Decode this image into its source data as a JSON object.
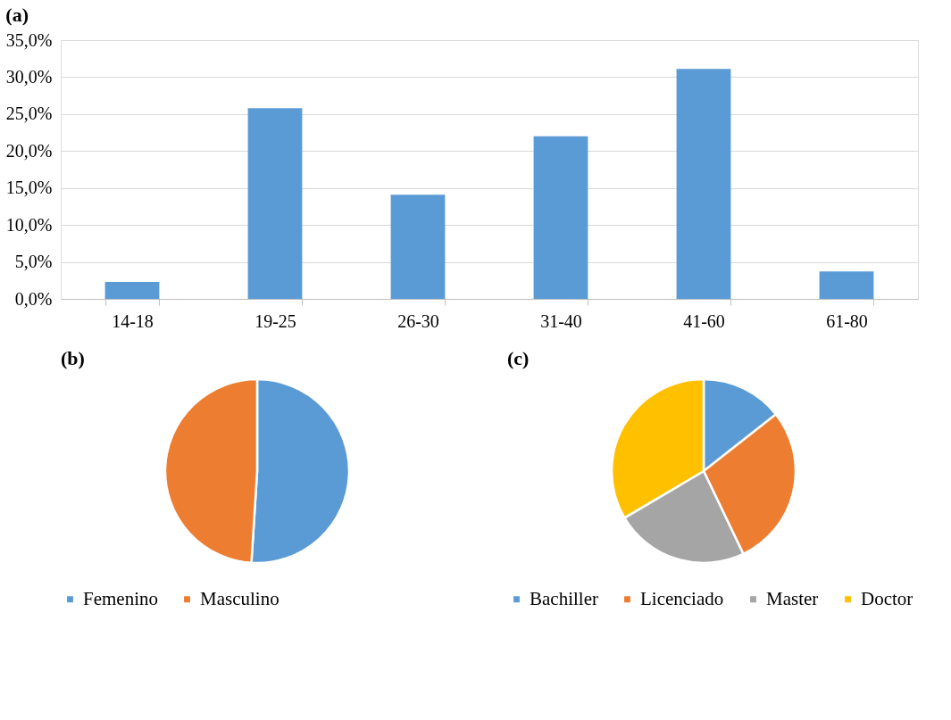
{
  "chart_data": [
    {
      "type": "bar",
      "title": "(a)",
      "categories": [
        "14-18",
        "19-25",
        "26-30",
        "31-40",
        "41-60",
        "61-80"
      ],
      "values": [
        2.3,
        25.8,
        14.1,
        22.0,
        31.1,
        3.7
      ],
      "color": "#5b9bd5",
      "ylim": [
        0,
        35
      ],
      "yticks": [
        {
          "value": 0,
          "label": "0,0%"
        },
        {
          "value": 5,
          "label": "5,0%"
        },
        {
          "value": 10,
          "label": "10,0%"
        },
        {
          "value": 15,
          "label": "15,0%"
        },
        {
          "value": 20,
          "label": "20,0%"
        },
        {
          "value": 25,
          "label": "25,0%"
        },
        {
          "value": 30,
          "label": "30,0%"
        },
        {
          "value": 35,
          "label": "35,0%"
        }
      ],
      "grid": "y"
    },
    {
      "type": "pie",
      "title": "(b)",
      "categories": [
        "Femenino",
        "Masculino"
      ],
      "values": [
        51,
        49
      ],
      "colors": [
        "#5b9bd5",
        "#ed7d31"
      ],
      "legend": "bottom"
    },
    {
      "type": "pie",
      "title": "(c)",
      "categories": [
        "Bachiller",
        "Licenciado",
        "Master",
        "Doctor"
      ],
      "values": [
        14.4,
        28.5,
        23.6,
        33.5
      ],
      "colors": [
        "#5b9bd5",
        "#ed7d31",
        "#a5a5a5",
        "#ffc000"
      ],
      "legend": "bottom"
    }
  ]
}
